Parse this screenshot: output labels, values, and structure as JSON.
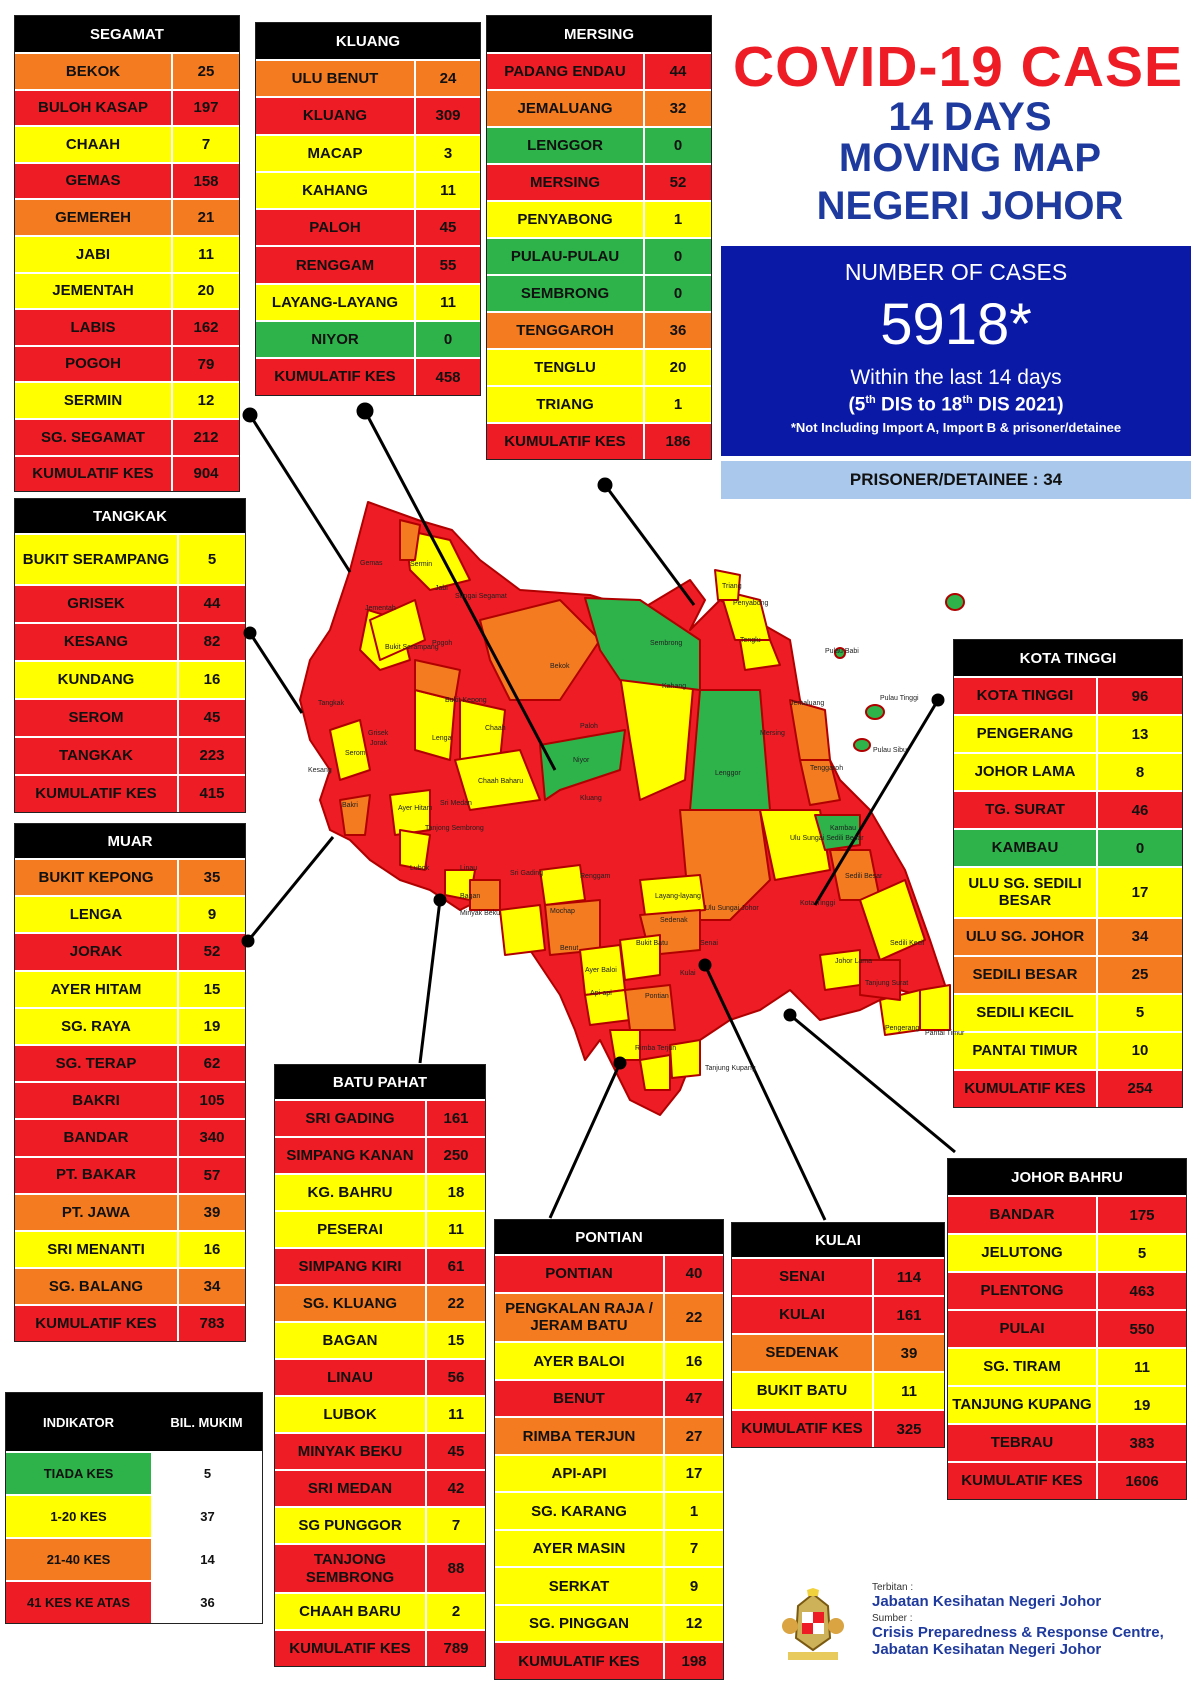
{
  "title": {
    "line1": "COVID-19 CASE",
    "line2": "14 DAYS",
    "line3": "MOVING MAP",
    "line4": "NEGERI JOHOR"
  },
  "summary": {
    "heading": "NUMBER OF CASES",
    "total": "5918*",
    "within": "Within the last 14 days",
    "range_prefix": "(5",
    "range_sup1": "th",
    "range_mid": " DIS to 18",
    "range_sup2": "th",
    "range_suffix": " DIS 2021)",
    "note": "*Not Including Import A, Import B & prisoner/detainee",
    "prisoner": "PRISONER/DETAINEE : 34"
  },
  "colors": {
    "green": "#2db34a",
    "yellow": "#ffff00",
    "orange": "#f47b20",
    "red": "#ee1c25",
    "navy": "#0a1aa6"
  },
  "districts": {
    "segamat": {
      "name": "SEGAMAT",
      "rows": [
        {
          "name": "BEKOK",
          "value": "25",
          "level": "orange"
        },
        {
          "name": "BULOH KASAP",
          "value": "197",
          "level": "red"
        },
        {
          "name": "CHAAH",
          "value": "7",
          "level": "yellow"
        },
        {
          "name": "GEMAS",
          "value": "158",
          "level": "red"
        },
        {
          "name": "GEMEREH",
          "value": "21",
          "level": "orange"
        },
        {
          "name": "JABI",
          "value": "11",
          "level": "yellow"
        },
        {
          "name": "JEMENTAH",
          "value": "20",
          "level": "yellow"
        },
        {
          "name": "LABIS",
          "value": "162",
          "level": "red"
        },
        {
          "name": "POGOH",
          "value": "79",
          "level": "red"
        },
        {
          "name": "SERMIN",
          "value": "12",
          "level": "yellow"
        },
        {
          "name": "SG. SEGAMAT",
          "value": "212",
          "level": "red"
        },
        {
          "name": "KUMULATIF KES",
          "value": "904",
          "level": "total"
        }
      ]
    },
    "kluang": {
      "name": "KLUANG",
      "rows": [
        {
          "name": "ULU BENUT",
          "value": "24",
          "level": "orange"
        },
        {
          "name": "KLUANG",
          "value": "309",
          "level": "red"
        },
        {
          "name": "MACAP",
          "value": "3",
          "level": "yellow"
        },
        {
          "name": "KAHANG",
          "value": "11",
          "level": "yellow"
        },
        {
          "name": "PALOH",
          "value": "45",
          "level": "red"
        },
        {
          "name": "RENGGAM",
          "value": "55",
          "level": "red"
        },
        {
          "name": "LAYANG-LAYANG",
          "value": "11",
          "level": "yellow"
        },
        {
          "name": "NIYOR",
          "value": "0",
          "level": "green"
        },
        {
          "name": "KUMULATIF KES",
          "value": "458",
          "level": "total"
        }
      ]
    },
    "mersing": {
      "name": "MERSING",
      "rows": [
        {
          "name": "PADANG ENDAU",
          "value": "44",
          "level": "red"
        },
        {
          "name": "JEMALUANG",
          "value": "32",
          "level": "orange"
        },
        {
          "name": "LENGGOR",
          "value": "0",
          "level": "green"
        },
        {
          "name": "MERSING",
          "value": "52",
          "level": "red"
        },
        {
          "name": "PENYABONG",
          "value": "1",
          "level": "yellow"
        },
        {
          "name": "PULAU-PULAU",
          "value": "0",
          "level": "green"
        },
        {
          "name": "SEMBRONG",
          "value": "0",
          "level": "green"
        },
        {
          "name": "TENGGAROH",
          "value": "36",
          "level": "orange"
        },
        {
          "name": "TENGLU",
          "value": "20",
          "level": "yellow"
        },
        {
          "name": "TRIANG",
          "value": "1",
          "level": "yellow"
        },
        {
          "name": "KUMULATIF KES",
          "value": "186",
          "level": "total"
        }
      ]
    },
    "tangkak": {
      "name": "TANGKAK",
      "rows": [
        {
          "name": "BUKIT SERAMPANG",
          "value": "5",
          "level": "yellow"
        },
        {
          "name": "GRISEK",
          "value": "44",
          "level": "red"
        },
        {
          "name": "KESANG",
          "value": "82",
          "level": "red"
        },
        {
          "name": "KUNDANG",
          "value": "16",
          "level": "yellow"
        },
        {
          "name": "SEROM",
          "value": "45",
          "level": "red"
        },
        {
          "name": "TANGKAK",
          "value": "223",
          "level": "red"
        },
        {
          "name": "KUMULATIF KES",
          "value": "415",
          "level": "total"
        }
      ]
    },
    "muar": {
      "name": "MUAR",
      "rows": [
        {
          "name": "BUKIT KEPONG",
          "value": "35",
          "level": "orange"
        },
        {
          "name": "LENGA",
          "value": "9",
          "level": "yellow"
        },
        {
          "name": "JORAK",
          "value": "52",
          "level": "red"
        },
        {
          "name": "AYER HITAM",
          "value": "15",
          "level": "yellow"
        },
        {
          "name": "SG. RAYA",
          "value": "19",
          "level": "yellow"
        },
        {
          "name": "SG. TERAP",
          "value": "62",
          "level": "red"
        },
        {
          "name": "BAKRI",
          "value": "105",
          "level": "red"
        },
        {
          "name": "BANDAR",
          "value": "340",
          "level": "red"
        },
        {
          "name": "PT. BAKAR",
          "value": "57",
          "level": "red"
        },
        {
          "name": "PT. JAWA",
          "value": "39",
          "level": "orange"
        },
        {
          "name": "SRI MENANTI",
          "value": "16",
          "level": "yellow"
        },
        {
          "name": "SG. BALANG",
          "value": "34",
          "level": "orange"
        },
        {
          "name": "KUMULATIF KES",
          "value": "783",
          "level": "total"
        }
      ]
    },
    "kotatinggi": {
      "name": "KOTA TINGGI",
      "rows": [
        {
          "name": "KOTA TINGGI",
          "value": "96",
          "level": "red"
        },
        {
          "name": "PENGERANG",
          "value": "13",
          "level": "yellow"
        },
        {
          "name": "JOHOR LAMA",
          "value": "8",
          "level": "yellow"
        },
        {
          "name": "TG. SURAT",
          "value": "46",
          "level": "red"
        },
        {
          "name": "KAMBAU",
          "value": "0",
          "level": "green"
        },
        {
          "name": "ULU SG. SEDILI BESAR",
          "value": "17",
          "level": "yellow"
        },
        {
          "name": "ULU  SG. JOHOR",
          "value": "34",
          "level": "orange"
        },
        {
          "name": "SEDILI BESAR",
          "value": "25",
          "level": "orange"
        },
        {
          "name": "SEDILI KECIL",
          "value": "5",
          "level": "yellow"
        },
        {
          "name": "PANTAI TIMUR",
          "value": "10",
          "level": "yellow"
        },
        {
          "name": "KUMULATIF KES",
          "value": "254",
          "level": "total"
        }
      ]
    },
    "batupahat": {
      "name": "BATU PAHAT",
      "rows": [
        {
          "name": "SRI GADING",
          "value": "161",
          "level": "red"
        },
        {
          "name": "SIMPANG KANAN",
          "value": "250",
          "level": "red"
        },
        {
          "name": "KG. BAHRU",
          "value": "18",
          "level": "yellow"
        },
        {
          "name": "PESERAI",
          "value": "11",
          "level": "yellow"
        },
        {
          "name": "SIMPANG KIRI",
          "value": "61",
          "level": "red"
        },
        {
          "name": "SG. KLUANG",
          "value": "22",
          "level": "orange"
        },
        {
          "name": "BAGAN",
          "value": "15",
          "level": "yellow"
        },
        {
          "name": "LINAU",
          "value": "56",
          "level": "red"
        },
        {
          "name": "LUBOK",
          "value": "11",
          "level": "yellow"
        },
        {
          "name": "MINYAK BEKU",
          "value": "45",
          "level": "red"
        },
        {
          "name": "SRI MEDAN",
          "value": "42",
          "level": "red"
        },
        {
          "name": "SG PUNGGOR",
          "value": "7",
          "level": "yellow"
        },
        {
          "name": "TANJONG SEMBRONG",
          "value": "88",
          "level": "red"
        },
        {
          "name": "CHAAH BARU",
          "value": "2",
          "level": "yellow"
        },
        {
          "name": "KUMULATIF KES",
          "value": "789",
          "level": "total"
        }
      ]
    },
    "pontian": {
      "name": "PONTIAN",
      "rows": [
        {
          "name": "PONTIAN",
          "value": "40",
          "level": "red"
        },
        {
          "name": "PENGKALAN RAJA / JERAM BATU",
          "value": "22",
          "level": "orange"
        },
        {
          "name": "AYER BALOI",
          "value": "16",
          "level": "yellow"
        },
        {
          "name": "BENUT",
          "value": "47",
          "level": "red"
        },
        {
          "name": "RIMBA TERJUN",
          "value": "27",
          "level": "orange"
        },
        {
          "name": "API-API",
          "value": "17",
          "level": "yellow"
        },
        {
          "name": "SG. KARANG",
          "value": "1",
          "level": "yellow"
        },
        {
          "name": "AYER MASIN",
          "value": "7",
          "level": "yellow"
        },
        {
          "name": "SERKAT",
          "value": "9",
          "level": "yellow"
        },
        {
          "name": "SG. PINGGAN",
          "value": "12",
          "level": "yellow"
        },
        {
          "name": "KUMULATIF KES",
          "value": "198",
          "level": "total"
        }
      ]
    },
    "kulai": {
      "name": "KULAI",
      "rows": [
        {
          "name": "SENAI",
          "value": "114",
          "level": "red"
        },
        {
          "name": "KULAI",
          "value": "161",
          "level": "red"
        },
        {
          "name": "SEDENAK",
          "value": "39",
          "level": "orange"
        },
        {
          "name": "BUKIT BATU",
          "value": "11",
          "level": "yellow"
        },
        {
          "name": "KUMULATIF KES",
          "value": "325",
          "level": "total"
        }
      ]
    },
    "johorbahru": {
      "name": "JOHOR BAHRU",
      "rows": [
        {
          "name": "BANDAR",
          "value": "175",
          "level": "red"
        },
        {
          "name": "JELUTONG",
          "value": "5",
          "level": "yellow"
        },
        {
          "name": "PLENTONG",
          "value": "463",
          "level": "red"
        },
        {
          "name": "PULAI",
          "value": "550",
          "level": "red"
        },
        {
          "name": "SG. TIRAM",
          "value": "11",
          "level": "yellow"
        },
        {
          "name": "TANJUNG KUPANG",
          "value": "19",
          "level": "yellow"
        },
        {
          "name": "TEBRAU",
          "value": "383",
          "level": "red"
        },
        {
          "name": "KUMULATIF KES",
          "value": "1606",
          "level": "total"
        }
      ]
    }
  },
  "legend": {
    "col1": "INDIKATOR",
    "col2": "BIL. MUKIM",
    "rows": [
      {
        "label": "TIADA KES",
        "count": "5",
        "level": "green"
      },
      {
        "label": "1-20 KES",
        "count": "37",
        "level": "yellow"
      },
      {
        "label": "21-40 KES",
        "count": "14",
        "level": "orange"
      },
      {
        "label": "41 KES KE ATAS",
        "count": "36",
        "level": "red"
      }
    ]
  },
  "map_labels": [
    "Gemas",
    "Sermin",
    "Jabi",
    "Sungai Segamat",
    "Pogoh",
    "Jementah",
    "Bukit Serampang",
    "Bekok",
    "Sembrong",
    "Tenglu",
    "Penyabong",
    "Triang",
    "Pulau Babi",
    "Pulau Tinggi",
    "Pulau Sibu",
    "Jemaluang",
    "Mersing",
    "Tenggaroh",
    "Lenggor",
    "Kahang",
    "Niyor",
    "Paloh",
    "Chaah",
    "Chaah Baharu",
    "Bukit Kepong",
    "Lenga",
    "Tangkak",
    "Grisek",
    "Kesang",
    "Serom",
    "Jorak",
    "Bakri",
    "Ayer Hitam",
    "Sri Medan",
    "Tanjong Sembrong",
    "Kluang",
    "Renggam",
    "Linau",
    "Lubok",
    "Bagan",
    "Minyak Beku",
    "Sri Gading",
    "Mochap",
    "Layang-layang",
    "Sedenak",
    "Ulu Sungai Johor",
    "Ulu Sungai Sedili Besar",
    "Kambau",
    "Sedili Besar",
    "Kota Tinggi",
    "Sedili Kecil",
    "Johor Lama",
    "Tanjung Surat",
    "Pengerang",
    "Pantai Timur",
    "Senai",
    "Kulai",
    "Bukit Batu",
    "Benut",
    "Ayer Baloi",
    "Api-api",
    "Pontian",
    "Rimba Terjun",
    "Tanjung Kupang"
  ],
  "credits": {
    "terbitan_label": "Terbitan :",
    "terbitan": "Jabatan Kesihatan Negeri Johor",
    "sumber_label": "Sumber :",
    "sumber1": "Crisis Preparedness & Response Centre,",
    "sumber2": "Jabatan Kesihatan Negeri Johor",
    "emblem": "johor-crest-icon"
  }
}
